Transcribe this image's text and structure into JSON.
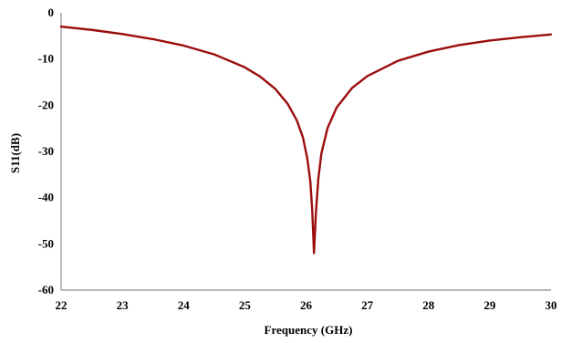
{
  "chart_data": {
    "type": "line",
    "title": "",
    "xlabel": "Frequency (GHz)",
    "ylabel": "S11(dB)",
    "xlim": [
      22,
      30
    ],
    "ylim": [
      -60,
      0
    ],
    "x_ticks": [
      22,
      23,
      24,
      25,
      26,
      27,
      28,
      29,
      30
    ],
    "y_ticks": [
      0,
      -10,
      -20,
      -30,
      -40,
      -50,
      -60
    ],
    "grid": false,
    "legend": "none",
    "series": [
      {
        "color": "#9b0d0d",
        "x": [
          22.0,
          22.5,
          23.0,
          23.5,
          24.0,
          24.5,
          25.0,
          25.25,
          25.5,
          25.7,
          25.85,
          25.95,
          26.02,
          26.07,
          26.1,
          26.13,
          26.16,
          26.2,
          26.25,
          26.35,
          26.5,
          26.75,
          27.0,
          27.5,
          28.0,
          28.5,
          29.0,
          29.5,
          30.0
        ],
        "y": [
          -3.0,
          -3.7,
          -4.6,
          -5.7,
          -7.1,
          -9.0,
          -11.8,
          -13.8,
          -16.5,
          -19.7,
          -23.3,
          -27.0,
          -31.5,
          -36.5,
          -42.5,
          -52.0,
          -43.5,
          -36.0,
          -30.5,
          -25.0,
          -20.5,
          -16.3,
          -13.7,
          -10.4,
          -8.4,
          -7.0,
          -6.0,
          -5.3,
          -4.7
        ]
      }
    ]
  }
}
